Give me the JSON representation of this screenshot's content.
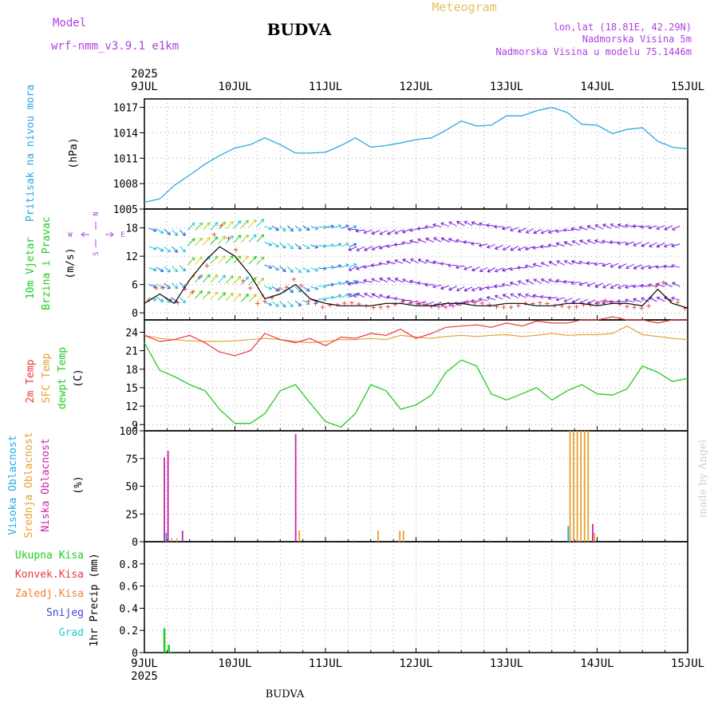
{
  "header": {
    "model_label": "Model",
    "model_name": "wrf-nmm_v3.9.1  e1km",
    "title": "BUDVA",
    "subtitle": "Meteogram",
    "lonlat": "lon,lat (18.81E, 42.29N)",
    "elevation": "Nadmorska Visina 5m",
    "model_elevation": "Nadmorska Visina u modelu 75.1446m"
  },
  "footer": {
    "title": "BUDVA",
    "credit": "made by Angel"
  },
  "time_axis": {
    "year": "2025",
    "labels": [
      "9JUL",
      "10JUL",
      "11JUL",
      "12JUL",
      "13JUL",
      "14JUL",
      "15JUL"
    ]
  },
  "colors": {
    "pressure": "#2aa8e0",
    "temp2m": "#e8383d",
    "sfc_temp": "#e8a030",
    "dewpt": "#22cc22",
    "wind_speed": "#000000",
    "gust": "#e8383d",
    "high_cloud": "#22aadd",
    "mid_cloud": "#e8a030",
    "low_cloud": "#cc22aa",
    "total_precip": "#22cc22",
    "conv_precip": "#e8383d",
    "frozen_precip": "#f08030",
    "snow": "#4444dd",
    "hail": "#22cccc",
    "purple_text": "#b040e0",
    "gold_text": "#e8c060"
  },
  "chart_data": [
    {
      "type": "line",
      "panel": "pressure",
      "ylabel_main": "Pritisak na nivou mora",
      "ylabel_unit": "(hPa)",
      "yticks": [
        1005,
        1008,
        1011,
        1014,
        1017
      ],
      "ylim": [
        1005,
        1018
      ],
      "x_days": [
        0,
        0.17,
        0.33,
        0.5,
        0.67,
        0.83,
        1,
        1.17,
        1.33,
        1.5,
        1.67,
        1.83,
        2,
        2.17,
        2.33,
        2.5,
        2.67,
        2.83,
        3,
        3.17,
        3.33,
        3.5,
        3.67,
        3.83,
        4,
        4.17,
        4.33,
        4.5,
        4.67,
        4.83,
        5,
        5.17,
        5.33,
        5.5,
        5.67,
        5.83,
        6
      ],
      "series": [
        {
          "values": [
            1005.8,
            1006.2,
            1007.8,
            1009.0,
            1010.3,
            1011.3,
            1012.2,
            1012.6,
            1013.4,
            1012.6,
            1011.6,
            1011.6,
            1011.7,
            1012.5,
            1013.4,
            1012.3,
            1012.5,
            1012.8,
            1013.2,
            1013.4,
            1014.3,
            1015.4,
            1014.8,
            1014.9,
            1016.0,
            1016.0,
            1016.6,
            1017.0,
            1016.4,
            1015.0,
            1014.9,
            1013.9,
            1014.4,
            1014.6,
            1013.0,
            1012.3,
            1012.1
          ]
        }
      ]
    },
    {
      "type": "line",
      "panel": "wind",
      "ylabel_main": "10m Vjetar",
      "ylabel_main2": "Brzina i Pravac",
      "ylabel_unit": "(m/s)",
      "compass": {
        "n": "N",
        "s": "S",
        "e": "E",
        "w": "W"
      },
      "yticks": [
        0,
        6,
        12,
        18
      ],
      "ylim": [
        -1.5,
        22
      ],
      "x_days": [
        0,
        0.17,
        0.33,
        0.5,
        0.67,
        0.83,
        1,
        1.17,
        1.33,
        1.5,
        1.67,
        1.83,
        2,
        2.17,
        2.33,
        2.5,
        2.67,
        2.83,
        3,
        3.17,
        3.33,
        3.5,
        3.67,
        3.83,
        4,
        4.17,
        4.33,
        4.5,
        4.67,
        4.83,
        5,
        5.17,
        5.33,
        5.5,
        5.67,
        5.83,
        6
      ],
      "series": [
        {
          "name": "speed",
          "values": [
            2,
            4,
            2,
            7,
            11,
            14,
            12,
            8,
            3,
            4,
            6,
            3,
            2,
            1.5,
            1.5,
            1.5,
            2,
            2,
            1.5,
            1.5,
            2,
            2,
            1.5,
            1.5,
            2,
            2,
            1.5,
            1.5,
            2,
            2,
            1.5,
            2,
            2,
            1.5,
            5,
            2,
            1
          ]
        },
        {
          "name": "gust",
          "values": [
            3,
            5,
            3,
            9,
            13,
            17,
            15,
            10,
            4,
            5,
            7,
            4,
            2.5,
            2,
            2,
            2,
            2.5,
            2.5,
            2,
            2,
            2.5,
            2.5,
            2,
            2,
            2.5,
            2.5,
            2,
            2,
            2.5,
            2.5,
            2,
            2.5,
            2.5,
            2,
            6,
            2.5,
            1.5
          ]
        }
      ]
    },
    {
      "type": "line",
      "panel": "temperature",
      "ylabel_lines": [
        "2m Temp",
        "SFC Temp",
        "dewpt Temp"
      ],
      "ylabel_unit": "(C)",
      "yticks": [
        9,
        12,
        15,
        18,
        21,
        24
      ],
      "ylim": [
        8,
        26
      ],
      "x_days": [
        0,
        0.17,
        0.33,
        0.5,
        0.67,
        0.83,
        1,
        1.17,
        1.33,
        1.5,
        1.67,
        1.83,
        2,
        2.17,
        2.33,
        2.5,
        2.67,
        2.83,
        3,
        3.17,
        3.33,
        3.5,
        3.67,
        3.83,
        4,
        4.17,
        4.33,
        4.5,
        4.67,
        4.83,
        5,
        5.17,
        5.33,
        5.5,
        5.67,
        5.83,
        6
      ],
      "series": [
        {
          "name": "2m Temp",
          "values": [
            23.5,
            22.5,
            22.8,
            23.5,
            22.3,
            20.8,
            20.2,
            21.0,
            23.8,
            22.8,
            22.3,
            23.0,
            21.8,
            23.2,
            23.0,
            23.8,
            23.5,
            24.5,
            23.0,
            23.8,
            24.8,
            25.0,
            25.2,
            24.8,
            25.5,
            25.0,
            25.8,
            25.5,
            25.5,
            26.0,
            26.0,
            26.5,
            26.0,
            26.0,
            25.5,
            26.0,
            26.0
          ]
        },
        {
          "name": "SFC Temp",
          "values": [
            23.5,
            23.0,
            22.8,
            22.6,
            22.5,
            22.5,
            22.6,
            22.8,
            23.0,
            22.8,
            22.5,
            22.3,
            22.5,
            22.8,
            22.8,
            23.0,
            22.8,
            23.5,
            23.2,
            23.0,
            23.3,
            23.5,
            23.3,
            23.5,
            23.6,
            23.3,
            23.5,
            23.8,
            23.5,
            23.6,
            23.6,
            23.8,
            25.0,
            23.6,
            23.3,
            23.0,
            22.8
          ]
        },
        {
          "name": "dewpt Temp",
          "values": [
            22.3,
            17.8,
            16.8,
            15.5,
            14.5,
            11.5,
            9.2,
            9.2,
            10.8,
            14.5,
            15.5,
            12.5,
            9.5,
            8.6,
            10.8,
            15.5,
            14.5,
            11.5,
            12.2,
            13.8,
            17.5,
            19.5,
            18.5,
            14.0,
            13.0,
            14.0,
            15.0,
            13.0,
            14.5,
            15.5,
            14.0,
            13.8,
            14.8,
            18.5,
            17.5,
            16.0,
            16.5
          ]
        }
      ]
    },
    {
      "type": "bar",
      "panel": "clouds",
      "ylabel_lines": [
        "Visoka Oblacnost",
        "Srednja Oblacnost",
        "Niska Oblacnost"
      ],
      "ylabel_unit": "(%)",
      "yticks": [
        0,
        25,
        50,
        75,
        100
      ],
      "ylim": [
        0,
        100
      ],
      "x_days_bars": [
        {
          "x": 0.22,
          "series": "low",
          "value": 76
        },
        {
          "x": 0.26,
          "series": "low",
          "value": 82
        },
        {
          "x": 0.24,
          "series": "high",
          "value": 8
        },
        {
          "x": 0.3,
          "series": "mid",
          "value": 3
        },
        {
          "x": 0.36,
          "series": "mid",
          "value": 3
        },
        {
          "x": 0.42,
          "series": "low",
          "value": 10
        },
        {
          "x": 1.67,
          "series": "low",
          "value": 97
        },
        {
          "x": 1.71,
          "series": "mid",
          "value": 10
        },
        {
          "x": 2.58,
          "series": "mid",
          "value": 10
        },
        {
          "x": 2.82,
          "series": "mid",
          "value": 10
        },
        {
          "x": 2.86,
          "series": "mid",
          "value": 10
        },
        {
          "x": 4.68,
          "series": "high",
          "value": 14
        },
        {
          "x": 4.7,
          "series": "mid",
          "value": 100
        },
        {
          "x": 4.74,
          "series": "mid",
          "value": 100
        },
        {
          "x": 4.78,
          "series": "mid",
          "value": 100
        },
        {
          "x": 4.82,
          "series": "mid",
          "value": 100
        },
        {
          "x": 4.86,
          "series": "mid",
          "value": 100
        },
        {
          "x": 4.9,
          "series": "mid",
          "value": 100
        },
        {
          "x": 4.95,
          "series": "low",
          "value": 16
        },
        {
          "x": 4.97,
          "series": "mid",
          "value": 8
        }
      ]
    },
    {
      "type": "bar",
      "panel": "precip",
      "ylabel_lines": [
        "Ukupna Kisa",
        "Konvek.Kisa",
        "Zaledj.Kisa",
        "Snijeg",
        "Grad"
      ],
      "ylabel_unit": "1hr Precip (mm)",
      "yticks": [
        0,
        0.2,
        0.4,
        0.6,
        0.8
      ],
      "ylim": [
        0,
        1.0
      ],
      "x_days_bars": [
        {
          "x": 0.22,
          "series": "total",
          "value": 0.22
        },
        {
          "x": 0.27,
          "series": "total",
          "value": 0.07
        },
        {
          "x": 0.3,
          "series": "total",
          "value": 0.01
        },
        {
          "x": 4.92,
          "series": "total",
          "value": 0.01
        }
      ]
    }
  ]
}
